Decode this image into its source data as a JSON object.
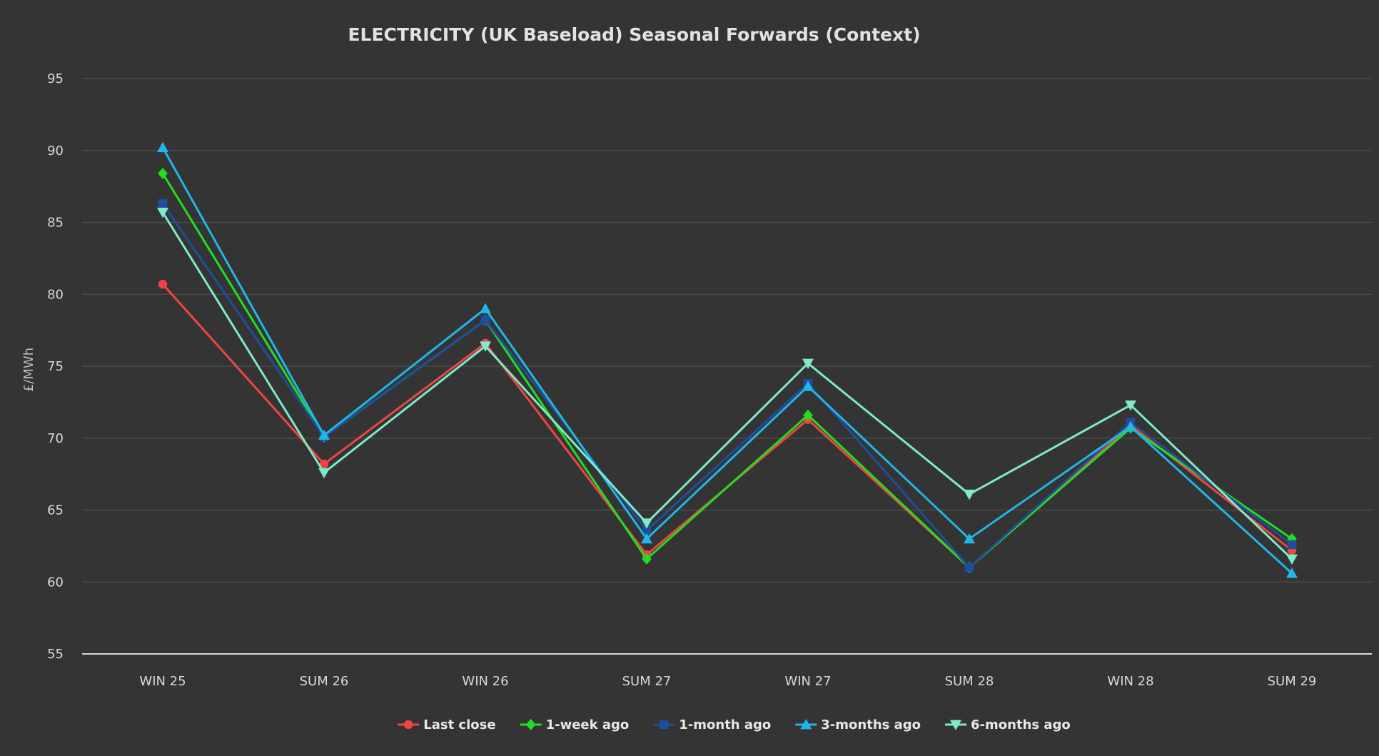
{
  "chart_data": {
    "type": "line",
    "title": "ELECTRICITY (UK Baseload) Seasonal Forwards (Context)",
    "xlabel": "",
    "ylabel": "£/MWh",
    "ylim": [
      55,
      95
    ],
    "yticks": [
      55,
      60,
      65,
      70,
      75,
      80,
      85,
      90,
      95
    ],
    "grid": true,
    "legend_position": "bottom",
    "categories": [
      "WIN 25",
      "SUM 26",
      "WIN 26",
      "SUM 27",
      "WIN 27",
      "SUM 28",
      "WIN 28",
      "SUM 29"
    ],
    "series": [
      {
        "name": "Last close",
        "color": "#ef4444",
        "marker": "circle",
        "values": [
          80.7,
          68.2,
          76.6,
          61.9,
          71.3,
          61.0,
          70.9,
          62.2
        ]
      },
      {
        "name": "1-week ago",
        "color": "#22dd22",
        "marker": "diamond",
        "values": [
          88.4,
          70.1,
          78.2,
          61.6,
          71.6,
          61.0,
          70.7,
          63.0
        ]
      },
      {
        "name": "1-month ago",
        "color": "#1f4e9c",
        "marker": "square",
        "values": [
          86.3,
          70.1,
          78.2,
          63.6,
          73.8,
          61.0,
          71.1,
          62.6
        ]
      },
      {
        "name": "3-months ago",
        "color": "#1fb6e8",
        "marker": "triangle-up",
        "values": [
          90.2,
          70.2,
          79.0,
          63.0,
          73.6,
          63.0,
          70.8,
          60.6
        ]
      },
      {
        "name": "6-months ago",
        "color": "#7eeac8",
        "marker": "triangle-down",
        "values": [
          85.7,
          67.6,
          76.4,
          64.1,
          75.2,
          66.1,
          72.3,
          61.6
        ]
      }
    ]
  }
}
